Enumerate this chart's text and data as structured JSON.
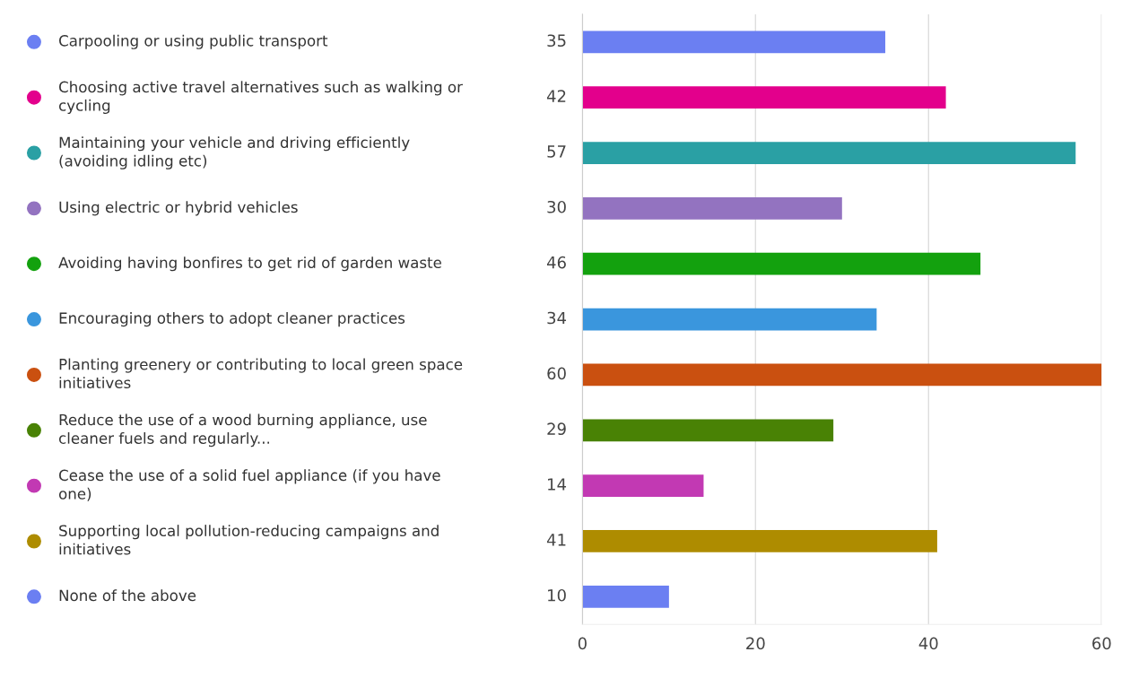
{
  "chart_data": {
    "type": "bar",
    "orientation": "horizontal",
    "categories": [
      "Carpooling or using public transport",
      "Choosing active travel alternatives such as walking or cycling",
      "Maintaining your vehicle and driving efficiently (avoiding idling etc)",
      "Using electric or hybrid vehicles",
      "Avoiding having bonfires to get rid of garden waste",
      "Encouraging others to adopt cleaner practices",
      "Planting greenery or contributing to local green space initiatives",
      "Reduce the use of a wood burning appliance, use cleaner fuels and regularly...",
      "Cease the use of a solid fuel appliance (if you have one)",
      "Supporting local pollution-reducing campaigns and initiatives",
      "None of the above"
    ],
    "values": [
      35,
      42,
      57,
      30,
      46,
      34,
      60,
      29,
      14,
      41,
      10
    ],
    "colors": [
      "#6b7ff2",
      "#e3008c",
      "#2aa0a4",
      "#9373c0",
      "#13a10e",
      "#3a96dd",
      "#ca5010",
      "#498205",
      "#c239b3",
      "#ae8c00",
      "#6b7ff2"
    ],
    "xlim": [
      0,
      60
    ],
    "xticks": [
      0,
      20,
      40,
      60
    ],
    "grid": "x",
    "data_labels": true
  }
}
